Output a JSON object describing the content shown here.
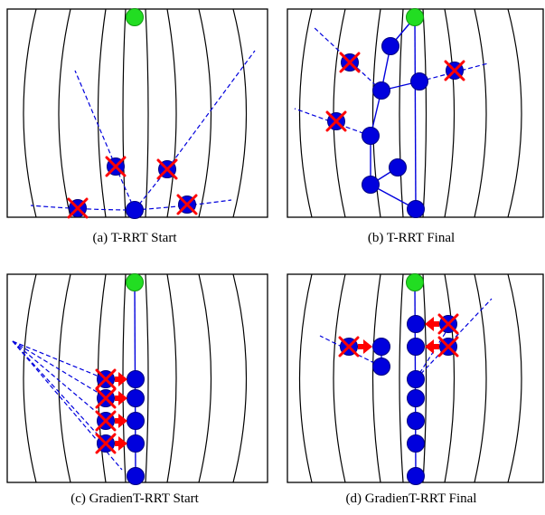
{
  "figure": {
    "panels": [
      {
        "id": "a",
        "caption": "(a) T-RRT Start"
      },
      {
        "id": "b",
        "caption": "(b) T-RRT Final"
      },
      {
        "id": "c",
        "caption": "(c) GradienT-RRT Start"
      },
      {
        "id": "d",
        "caption": "(d) GradienT-RRT Final"
      }
    ]
  },
  "colors": {
    "frame": "#000000",
    "contour": "#000000",
    "node": "#0000dd",
    "node_stroke": "#000080",
    "goal": "#22dd22",
    "edge": "#0000dd",
    "rejected": "#ff0000",
    "arrow": "#ff0000"
  }
}
